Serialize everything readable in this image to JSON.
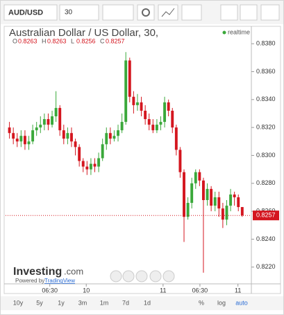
{
  "toolbar": {
    "symbol": "AUD/USD",
    "interval": "30"
  },
  "chart_data": {
    "type": "candlestick",
    "title": "Australian Dollar / US Dollar, 30,",
    "status": "realtime",
    "ohlc_header": [
      "O",
      "H",
      "L",
      "C"
    ],
    "open": [
      0.832,
      0.8316,
      0.8312,
      0.831,
      0.8314,
      0.8308,
      0.831,
      0.8318,
      0.832,
      0.8322,
      0.8326,
      0.8322,
      0.8328,
      0.8334,
      0.8318,
      0.8312,
      0.8316,
      0.831,
      0.8306,
      0.8296,
      0.8292,
      0.829,
      0.8294,
      0.8292,
      0.8298,
      0.8308,
      0.8316,
      0.8312,
      0.8314,
      0.8318,
      0.8324,
      0.8368,
      0.8342,
      0.8336,
      0.8338,
      0.8332,
      0.8326,
      0.8322,
      0.8318,
      0.8322,
      0.8324,
      0.8338,
      0.8332,
      0.832,
      0.8304,
      0.8288,
      0.8256,
      0.8266,
      0.828,
      0.8288,
      0.8282,
      0.8268,
      0.8276,
      0.8264,
      0.827,
      0.8262,
      0.8254,
      0.8264,
      0.8272,
      0.827,
      0.8263
    ],
    "high": [
      0.8324,
      0.832,
      0.8316,
      0.8318,
      0.8318,
      0.8314,
      0.8322,
      0.8324,
      0.8328,
      0.833,
      0.833,
      0.8332,
      0.8346,
      0.8336,
      0.8322,
      0.832,
      0.832,
      0.8312,
      0.8308,
      0.8298,
      0.8296,
      0.8298,
      0.8298,
      0.8302,
      0.8312,
      0.832,
      0.832,
      0.8318,
      0.8322,
      0.833,
      0.8374,
      0.837,
      0.8346,
      0.8344,
      0.8342,
      0.8336,
      0.833,
      0.8326,
      0.8326,
      0.8328,
      0.8342,
      0.834,
      0.8334,
      0.8322,
      0.8306,
      0.829,
      0.827,
      0.8284,
      0.829,
      0.829,
      0.8284,
      0.828,
      0.8278,
      0.8274,
      0.8274,
      0.8266,
      0.8268,
      0.8276,
      0.8274,
      0.8272,
      0.8263
    ],
    "low": [
      0.8312,
      0.8308,
      0.8306,
      0.8306,
      0.8304,
      0.8304,
      0.8308,
      0.8314,
      0.8316,
      0.8318,
      0.8318,
      0.832,
      0.8324,
      0.8314,
      0.8308,
      0.8308,
      0.8306,
      0.83,
      0.8292,
      0.8288,
      0.8286,
      0.8286,
      0.8288,
      0.8288,
      0.8296,
      0.8304,
      0.8308,
      0.831,
      0.831,
      0.8316,
      0.8322,
      0.8338,
      0.833,
      0.8332,
      0.8328,
      0.8322,
      0.8318,
      0.8316,
      0.8316,
      0.8318,
      0.832,
      0.8328,
      0.8316,
      0.83,
      0.8284,
      0.8238,
      0.8254,
      0.8262,
      0.8276,
      0.8278,
      0.8216,
      0.8264,
      0.826,
      0.826,
      0.8256,
      0.8248,
      0.825,
      0.826,
      0.8264,
      0.826,
      0.8256
    ],
    "close": [
      0.8316,
      0.8312,
      0.831,
      0.8314,
      0.8308,
      0.831,
      0.8318,
      0.832,
      0.8322,
      0.8326,
      0.8322,
      0.8328,
      0.8334,
      0.8318,
      0.8312,
      0.8316,
      0.831,
      0.8306,
      0.8296,
      0.8292,
      0.829,
      0.8294,
      0.8292,
      0.8298,
      0.8308,
      0.8316,
      0.8312,
      0.8314,
      0.8318,
      0.8324,
      0.8368,
      0.8342,
      0.8336,
      0.8338,
      0.8332,
      0.8326,
      0.8322,
      0.8318,
      0.8322,
      0.8324,
      0.8338,
      0.8332,
      0.832,
      0.8304,
      0.8288,
      0.8256,
      0.8266,
      0.828,
      0.8288,
      0.8282,
      0.8268,
      0.8276,
      0.8264,
      0.827,
      0.8262,
      0.8254,
      0.8264,
      0.8272,
      0.827,
      0.8263,
      0.8257
    ],
    "up_color": "#3aa83a",
    "down_color": "#d4161f",
    "ylim": [
      0.8208,
      0.8389
    ],
    "yticks": [
      {
        "value": 0.822,
        "label": "0.8220"
      },
      {
        "value": 0.824,
        "label": "0.8240"
      },
      {
        "value": 0.826,
        "label": "0.8260"
      },
      {
        "value": 0.828,
        "label": "0.8280"
      },
      {
        "value": 0.83,
        "label": "0.8300"
      },
      {
        "value": 0.832,
        "label": "0.8320"
      },
      {
        "value": 0.834,
        "label": "0.8340"
      },
      {
        "value": 0.836,
        "label": "0.8360"
      },
      {
        "value": 0.838,
        "label": "0.8380"
      }
    ],
    "xlim": [
      -1,
      62
    ],
    "xticks": [
      {
        "value": 10.4,
        "label": "06:30"
      },
      {
        "value": 19.8,
        "label": "10"
      },
      {
        "value": 39.6,
        "label": "11"
      },
      {
        "value": 49.1,
        "label": "06:30"
      },
      {
        "value": 58.9,
        "label": "11"
      }
    ],
    "grid": false
  },
  "branding": {
    "logo": "Investing",
    "logo_suffix": ".com",
    "powered_by": "Powered by",
    "powered_link": "TradingView"
  },
  "range_buttons": [
    "10y",
    "5y",
    "1y",
    "3m",
    "1m",
    "7d",
    "1d"
  ],
  "scale_buttons": [
    "%",
    "log",
    "auto"
  ]
}
